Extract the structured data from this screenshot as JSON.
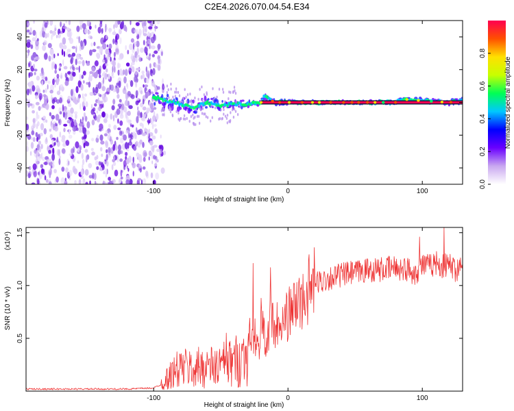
{
  "figure": {
    "title": "C2E4.2026.070.04.54.E34"
  },
  "chart_data": [
    {
      "type": "heatmap",
      "name": "spectrogram",
      "xlabel": "Height of straight line (km)",
      "ylabel": "Frequency (Hz)",
      "xlim": [
        -195,
        130
      ],
      "ylim": [
        -50,
        50
      ],
      "xticks": [
        -100,
        0,
        100
      ],
      "xtick_labels": [
        "-100",
        "0",
        "100"
      ],
      "yticks": [
        -40,
        -20,
        0,
        20,
        40
      ],
      "ytick_labels": [
        "-40",
        "-20",
        "0",
        "20",
        "40"
      ],
      "noise_region_x": [
        -195,
        -92
      ],
      "signal_line_frequency_hz": 0,
      "signal_line_x": [
        -20,
        130
      ],
      "trace": {
        "x": [
          -100,
          -90,
          -80,
          -70,
          -60,
          -50,
          -40,
          -30,
          -20,
          -18,
          -10,
          0,
          10,
          20,
          40,
          60,
          80,
          85,
          100,
          120,
          130
        ],
        "freq": [
          3,
          1,
          -1,
          -3,
          0,
          -2,
          -1,
          -1,
          0,
          4,
          0,
          0,
          0,
          0,
          0,
          0,
          0,
          2,
          1,
          0,
          1
        ],
        "spread_hz": [
          9,
          8,
          8,
          7,
          6,
          6,
          5,
          4,
          3,
          3,
          3,
          3,
          2,
          2,
          2,
          2,
          2,
          3,
          3,
          3,
          3
        ]
      },
      "colorbar": {
        "label": "Normalized spectral amplitude",
        "ticks": [
          0.0,
          0.2,
          0.4,
          0.6,
          0.8
        ],
        "tick_labels": [
          "0.0",
          "0.2",
          "0.4",
          "0.6",
          "0.8"
        ],
        "range": [
          0,
          1
        ],
        "colors": [
          "#ffffff",
          "#c9a8f0",
          "#6a00ff",
          "#0000ff",
          "#00c8ff",
          "#00ff55",
          "#c8ff00",
          "#ffe000",
          "#ff5000",
          "#ff0050"
        ]
      }
    },
    {
      "type": "line",
      "name": "snr",
      "xlabel": "Height of straight line (km)",
      "ylabel": "SNR (10 * v/v)",
      "y_scale_label": "(x10⁴)",
      "xlim": [
        -195,
        130
      ],
      "ylim": [
        0,
        1.55
      ],
      "xticks": [
        -100,
        0,
        100
      ],
      "xtick_labels": [
        "-100",
        "0",
        "100"
      ],
      "yticks": [
        0.5,
        1.0,
        1.5
      ],
      "ytick_labels": [
        "0.5",
        "1.0",
        "1.5"
      ],
      "line_color": "#ee3333",
      "series": [
        {
          "name": "SNR",
          "x": [
            -195,
            -120,
            -100,
            -95,
            -90,
            -85,
            -80,
            -75,
            -70,
            -65,
            -60,
            -55,
            -50,
            -45,
            -40,
            -35,
            -30,
            -28,
            -26,
            -25,
            -22,
            -20,
            -18,
            -15,
            -13,
            -12,
            -10,
            -8,
            -5,
            -2,
            0,
            5,
            10,
            15,
            20,
            30,
            40,
            50,
            60,
            70,
            80,
            90,
            95,
            100,
            105,
            110,
            115,
            120,
            125,
            130
          ],
          "y": [
            0.02,
            0.02,
            0.03,
            0.06,
            0.12,
            0.18,
            0.22,
            0.22,
            0.2,
            0.23,
            0.24,
            0.22,
            0.25,
            0.25,
            0.28,
            0.3,
            0.4,
            0.55,
            0.45,
            0.55,
            0.38,
            0.62,
            0.55,
            0.45,
            0.78,
            0.7,
            0.58,
            0.52,
            0.6,
            0.7,
            0.72,
            0.8,
            0.85,
            0.95,
            1.02,
            1.07,
            1.1,
            1.12,
            1.15,
            1.15,
            1.17,
            1.15,
            1.12,
            1.2,
            1.18,
            1.22,
            1.18,
            1.2,
            1.15,
            1.2
          ],
          "spikes": [
            {
              "x": -46,
              "y": 0.55
            },
            {
              "x": -26,
              "y": 1.21
            },
            {
              "x": -20,
              "y": 0.88
            },
            {
              "x": -13,
              "y": 1.17
            },
            {
              "x": -8,
              "y": 0.84
            },
            {
              "x": 8,
              "y": 1.03
            },
            {
              "x": 98,
              "y": 1.46
            },
            {
              "x": 116,
              "y": 1.55
            }
          ]
        }
      ]
    }
  ]
}
